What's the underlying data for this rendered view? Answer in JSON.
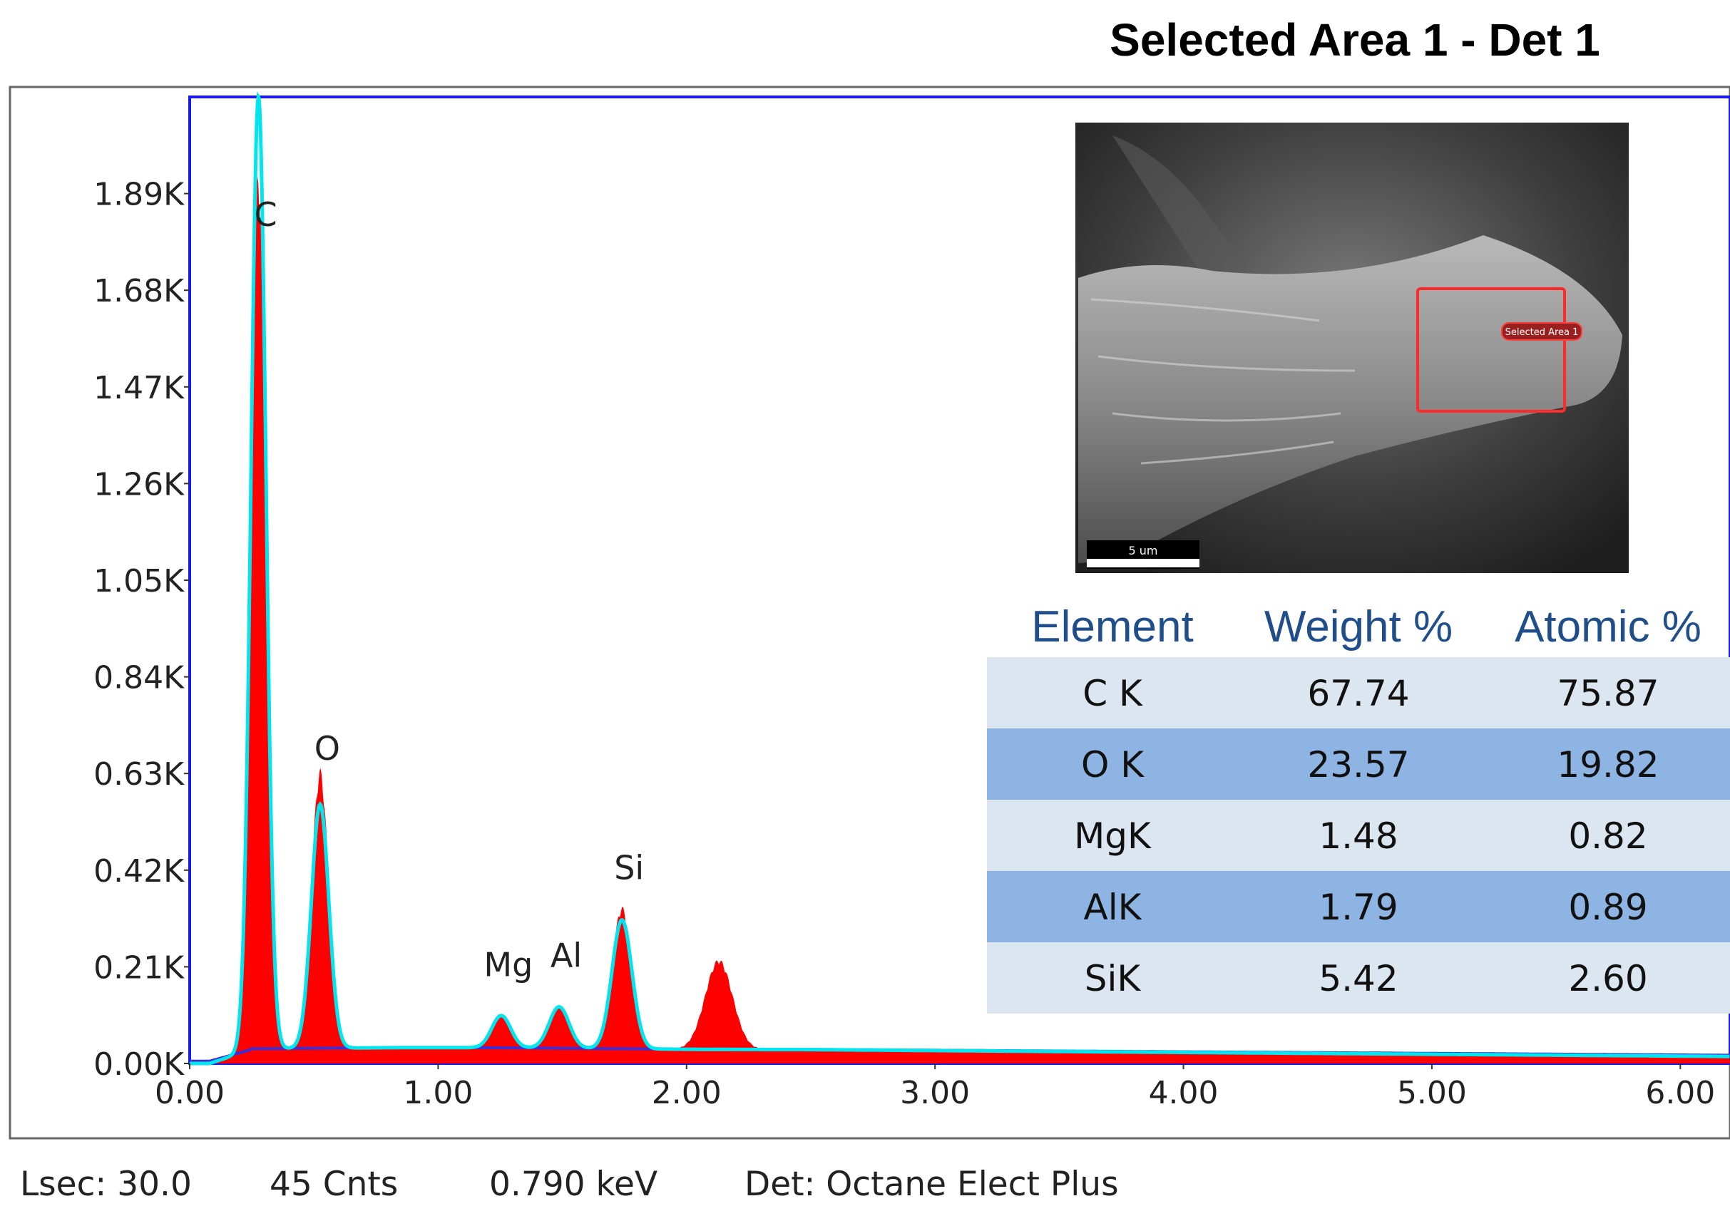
{
  "chart_data": {
    "type": "area",
    "title": "Selected Area 1 - Det 1",
    "xlabel": "",
    "ylabel": "",
    "xlim": [
      0,
      6.2
    ],
    "ylim": [
      0,
      2.1
    ],
    "x_tick_labels": [
      "0.00",
      "1.00",
      "2.00",
      "3.00",
      "4.00",
      "5.00",
      "6.00"
    ],
    "x_ticks": [
      0,
      1,
      2,
      3,
      4,
      5,
      6
    ],
    "y_tick_labels": [
      "0.00K",
      "0.21K",
      "0.42K",
      "0.63K",
      "0.84K",
      "1.05K",
      "1.26K",
      "1.47K",
      "1.68K",
      "1.89K"
    ],
    "y_ticks": [
      0,
      0.21,
      0.42,
      0.63,
      0.84,
      1.05,
      1.26,
      1.47,
      1.68,
      1.89
    ],
    "colors": {
      "spectrum": "#ff0000",
      "fit": "#00e5ee",
      "background": "#3b2ed6",
      "frame": "#1a1ae6"
    },
    "background_level": 0.03,
    "peaks": [
      {
        "label": "C",
        "energy": 0.277,
        "counts_measured": 1.9,
        "counts_fit": 2.1,
        "width": 0.03,
        "label_counts": 1.82
      },
      {
        "label": "O",
        "energy": 0.525,
        "counts_measured": 0.62,
        "counts_fit": 0.56,
        "width": 0.035,
        "label_counts": 0.66
      },
      {
        "label": "Mg",
        "energy": 1.254,
        "counts_measured": 0.1,
        "counts_fit": 0.1,
        "width": 0.038,
        "label_counts": 0.19
      },
      {
        "label": "Al",
        "energy": 1.487,
        "counts_measured": 0.12,
        "counts_fit": 0.12,
        "width": 0.04,
        "label_counts": 0.21
      },
      {
        "label": "Si",
        "energy": 1.74,
        "counts_measured": 0.33,
        "counts_fit": 0.31,
        "width": 0.04,
        "label_counts": 0.4
      },
      {
        "label": "",
        "energy": 2.13,
        "counts_measured": 0.22,
        "counts_fit": 0.0,
        "width": 0.055,
        "label_counts": null
      }
    ]
  },
  "inset": {
    "region_label": "Selected Area 1",
    "scale_bar": "5 um"
  },
  "table": {
    "headers": [
      "Element",
      "Weight %",
      "Atomic %"
    ],
    "rows": [
      [
        "C K",
        "67.74",
        "75.87"
      ],
      [
        "O K",
        "23.57",
        "19.82"
      ],
      [
        "MgK",
        "1.48",
        "0.82"
      ],
      [
        "AlK",
        "1.79",
        "0.89"
      ],
      [
        "SiK",
        "5.42",
        "2.60"
      ]
    ],
    "row_colors": [
      "#dce6f1",
      "#8db4e2"
    ]
  },
  "status_bar": {
    "lsec": "Lsec: 30.0",
    "cnts": "45 Cnts",
    "kev": "0.790 keV",
    "detector": "Det: Octane Elect Plus"
  }
}
